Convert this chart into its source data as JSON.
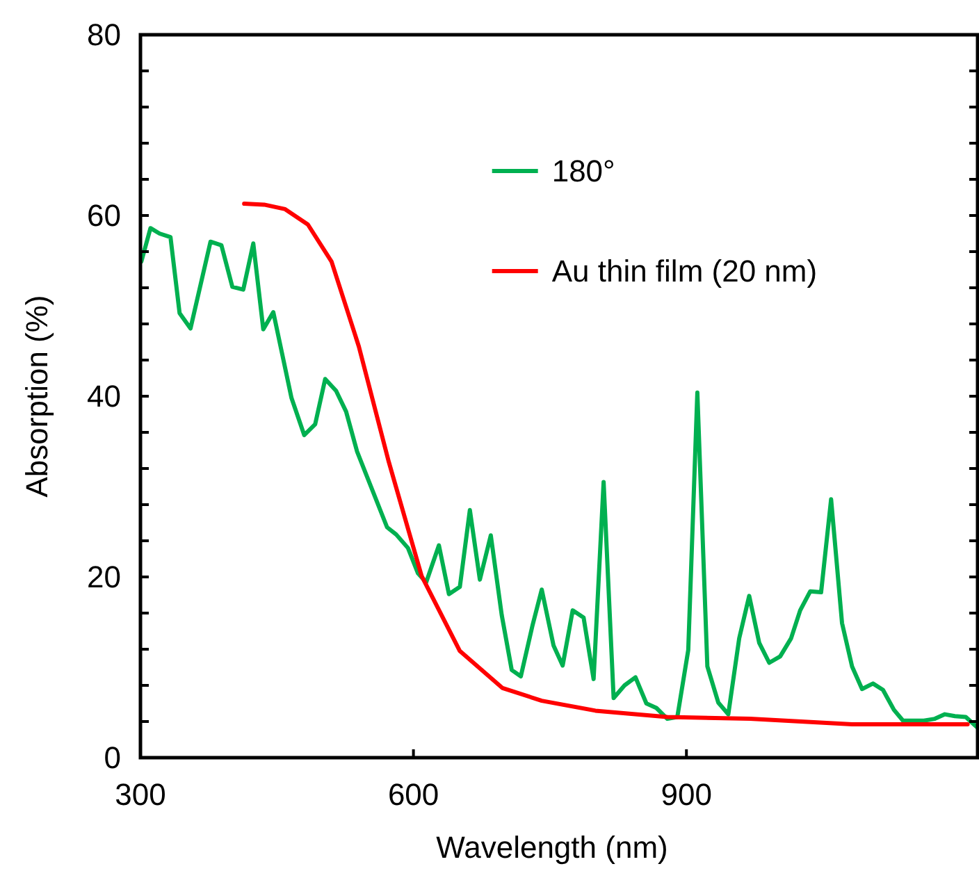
{
  "chart_data": {
    "type": "line",
    "xlabel": "Wavelength (nm)",
    "ylabel": "Absorption (%)",
    "xlim": [
      300,
      1220
    ],
    "xticks": [
      300,
      600,
      900
    ],
    "ylim": [
      0,
      80
    ],
    "yticks": [
      0,
      {
        "value": 4,
        "label": null
      },
      {
        "value": 8,
        "label": null
      },
      {
        "value": 12,
        "label": null
      },
      {
        "value": 16,
        "label": null
      },
      20,
      {
        "value": 24,
        "label": null
      },
      {
        "value": 28,
        "label": null
      },
      {
        "value": 32,
        "label": null
      },
      {
        "value": 36,
        "label": null
      },
      40,
      {
        "value": 44,
        "label": null
      },
      {
        "value": 48,
        "label": null
      },
      {
        "value": 52,
        "label": null
      },
      {
        "value": 56,
        "label": null
      },
      60,
      {
        "value": 64,
        "label": null
      },
      {
        "value": 68,
        "label": null
      },
      {
        "value": 72,
        "label": null
      },
      {
        "value": 76,
        "label": null
      },
      80
    ],
    "grid": false,
    "legend": "top right",
    "marker": "none",
    "line_style": "solid",
    "series": [
      {
        "name": "180°",
        "color": "#00b050",
        "x": [
          301,
          311,
          321,
          333,
          343,
          355,
          377,
          389,
          401,
          413,
          424,
          435,
          446,
          466,
          480,
          492,
          503,
          515,
          526,
          538,
          571,
          581,
          594,
          605,
          614,
          628,
          639,
          651,
          662,
          673,
          685,
          697,
          708,
          718,
          731,
          741,
          754,
          764,
          775,
          787,
          798,
          809,
          820,
          832,
          844,
          856,
          867,
          879,
          890,
          902,
          912,
          923,
          935,
          946,
          958,
          969,
          980,
          991,
          1003,
          1015,
          1025,
          1036,
          1048,
          1059,
          1071,
          1082,
          1093,
          1105,
          1116,
          1128,
          1138,
          1161,
          1173,
          1184,
          1195,
          1207,
          1219
        ],
        "values": [
          54.9,
          58.6,
          58.0,
          57.6,
          49.2,
          47.5,
          57.1,
          56.7,
          52.1,
          51.8,
          56.9,
          47.4,
          49.3,
          39.8,
          35.7,
          36.9,
          41.9,
          40.6,
          38.3,
          33.9,
          25.5,
          24.7,
          23.2,
          20.4,
          19.4,
          23.5,
          18.1,
          18.9,
          27.4,
          19.7,
          24.6,
          15.8,
          9.7,
          9.0,
          14.7,
          18.6,
          12.4,
          10.2,
          16.3,
          15.5,
          8.7,
          30.5,
          6.6,
          8.0,
          8.9,
          6.0,
          5.5,
          4.3,
          4.5,
          11.9,
          40.4,
          10.1,
          6.1,
          4.8,
          13.2,
          17.9,
          12.7,
          10.5,
          11.2,
          13.2,
          16.3,
          18.4,
          18.3,
          28.6,
          14.9,
          10.1,
          7.6,
          8.2,
          7.5,
          5.3,
          4.1,
          4.1,
          4.3,
          4.8,
          4.6,
          4.5,
          3.4
        ]
      },
      {
        "name": "Au thin film (20 nm)",
        "color": "#ff0000",
        "x": [
          414,
          436,
          459,
          484,
          510,
          540,
          573,
          609,
          651,
          698,
          741,
          800,
          879,
          970,
          1082,
          1209
        ],
        "values": [
          61.3,
          61.2,
          60.7,
          59.0,
          54.9,
          45.5,
          32.7,
          20.1,
          11.8,
          7.7,
          6.3,
          5.2,
          4.5,
          4.3,
          3.7,
          3.7
        ]
      }
    ]
  }
}
